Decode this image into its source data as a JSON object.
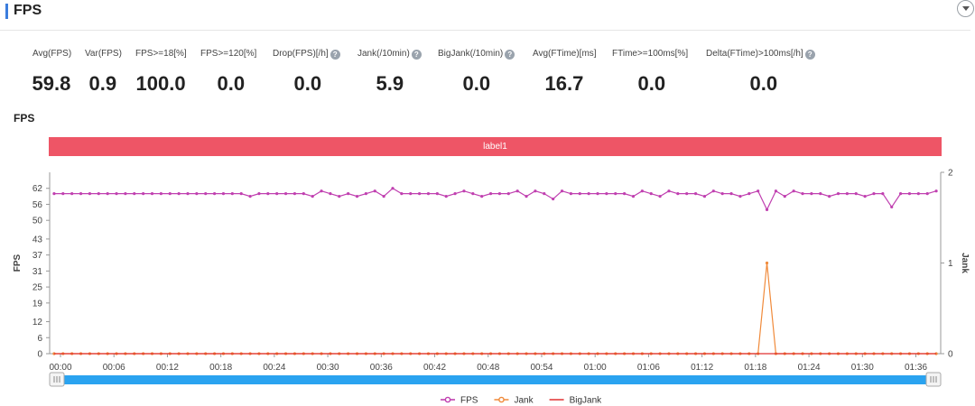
{
  "header": {
    "title": "FPS"
  },
  "metrics": [
    {
      "label": "Avg(FPS)",
      "value": "59.8",
      "help": false
    },
    {
      "label": "Var(FPS)",
      "value": "0.9",
      "help": false
    },
    {
      "label": "FPS>=18[%]",
      "value": "100.0",
      "help": false
    },
    {
      "label": "FPS>=120[%]",
      "value": "0.0",
      "help": false
    },
    {
      "label": "Drop(FPS)[/h]",
      "value": "0.0",
      "help": true
    },
    {
      "label": "Jank(/10min)",
      "value": "5.9",
      "help": true
    },
    {
      "label": "BigJank(/10min)",
      "value": "0.0",
      "help": true
    },
    {
      "label": "Avg(FTime)[ms]",
      "value": "16.7",
      "help": false
    },
    {
      "label": "FTime>=100ms[%]",
      "value": "0.0",
      "help": false
    },
    {
      "label": "Delta(FTime)>100ms[/h]",
      "value": "0.0",
      "help": true
    }
  ],
  "chart": {
    "title": "FPS",
    "label_band": "label1"
  },
  "chart_data": {
    "type": "line",
    "title": "FPS",
    "xlabel": "",
    "ylabel": "FPS",
    "y2label": "Jank",
    "x_ticks": [
      "00:00",
      "00:06",
      "00:12",
      "00:18",
      "00:24",
      "00:30",
      "00:36",
      "00:42",
      "00:48",
      "00:54",
      "01:00",
      "01:06",
      "01:12",
      "01:18",
      "01:24",
      "01:30",
      "01:36"
    ],
    "y_ticks": [
      0,
      6,
      12,
      19,
      25,
      31,
      37,
      43,
      50,
      56,
      62
    ],
    "y2_ticks": [
      0,
      1,
      2
    ],
    "ylim": [
      0,
      68
    ],
    "y2lim": [
      0,
      2
    ],
    "x_unit_seconds": 1,
    "xlim_seconds": [
      0,
      100
    ],
    "grid": false,
    "legend_position": "bottom",
    "series": [
      {
        "name": "FPS",
        "axis": "left",
        "color": "#c040b0",
        "values": [
          60,
          60,
          60,
          60,
          60,
          60,
          60,
          60,
          60,
          60,
          60,
          60,
          60,
          60,
          60,
          60,
          60,
          60,
          60,
          60,
          60,
          60,
          59,
          60,
          60,
          60,
          60,
          60,
          60,
          59,
          61,
          60,
          59,
          60,
          59,
          60,
          61,
          59,
          62,
          60,
          60,
          60,
          60,
          60,
          59,
          60,
          61,
          60,
          59,
          60,
          60,
          60,
          61,
          59,
          61,
          60,
          58,
          61,
          60,
          60,
          60,
          60,
          60,
          60,
          60,
          59,
          61,
          60,
          59,
          61,
          60,
          60,
          60,
          59,
          61,
          60,
          60,
          59,
          60,
          61,
          54,
          61,
          59,
          61,
          60,
          60,
          60,
          59,
          60,
          60,
          60,
          59,
          60,
          60,
          55,
          60,
          60,
          60,
          60,
          61
        ]
      },
      {
        "name": "Jank",
        "axis": "right",
        "color": "#f08a3a",
        "values": [
          0,
          0,
          0,
          0,
          0,
          0,
          0,
          0,
          0,
          0,
          0,
          0,
          0,
          0,
          0,
          0,
          0,
          0,
          0,
          0,
          0,
          0,
          0,
          0,
          0,
          0,
          0,
          0,
          0,
          0,
          0,
          0,
          0,
          0,
          0,
          0,
          0,
          0,
          0,
          0,
          0,
          0,
          0,
          0,
          0,
          0,
          0,
          0,
          0,
          0,
          0,
          0,
          0,
          0,
          0,
          0,
          0,
          0,
          0,
          0,
          0,
          0,
          0,
          0,
          0,
          0,
          0,
          0,
          0,
          0,
          0,
          0,
          0,
          0,
          0,
          0,
          0,
          0,
          0,
          0,
          1,
          0,
          0,
          0,
          0,
          0,
          0,
          0,
          0,
          0,
          0,
          0,
          0,
          0,
          0,
          0,
          0,
          0,
          0,
          0
        ]
      },
      {
        "name": "BigJank",
        "axis": "right",
        "color": "#e03030",
        "values": [
          0,
          0,
          0,
          0,
          0,
          0,
          0,
          0,
          0,
          0,
          0,
          0,
          0,
          0,
          0,
          0,
          0,
          0,
          0,
          0,
          0,
          0,
          0,
          0,
          0,
          0,
          0,
          0,
          0,
          0,
          0,
          0,
          0,
          0,
          0,
          0,
          0,
          0,
          0,
          0,
          0,
          0,
          0,
          0,
          0,
          0,
          0,
          0,
          0,
          0,
          0,
          0,
          0,
          0,
          0,
          0,
          0,
          0,
          0,
          0,
          0,
          0,
          0,
          0,
          0,
          0,
          0,
          0,
          0,
          0,
          0,
          0,
          0,
          0,
          0,
          0,
          0,
          0,
          0,
          0,
          0,
          0,
          0,
          0,
          0,
          0,
          0,
          0,
          0,
          0,
          0,
          0,
          0,
          0,
          0,
          0,
          0,
          0,
          0,
          0
        ]
      }
    ]
  }
}
